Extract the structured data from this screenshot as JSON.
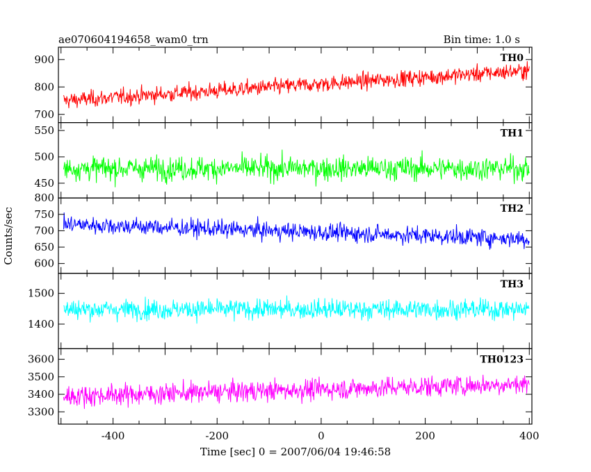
{
  "header": {
    "title": "ae070604194658_wam0_trn",
    "bin_time": "Bin time: 1.0 s"
  },
  "axes": {
    "xlabel": "Time [sec] 0 = 2007/06/04 19:46:58",
    "ylabel": "Counts/sec",
    "x_ticks": [
      "-400",
      "-200",
      "0",
      "200",
      "400"
    ]
  },
  "chart_data": {
    "type": "line",
    "x_range": [
      -505,
      405
    ],
    "x_ticks": [
      -400,
      -200,
      0,
      200,
      400
    ],
    "bin_seconds": 1.0,
    "series": [
      {
        "name": "TH0",
        "color": "#ff0000",
        "ylim": [
          670,
          945
        ],
        "y_ticks": [
          700,
          800,
          900
        ],
        "y_tick_labels": [
          "700",
          "800",
          "900"
        ],
        "trend_start": 750,
        "trend_end": 860,
        "noise": 50
      },
      {
        "name": "TH1",
        "color": "#00ff00",
        "ylim": [
          422,
          565
        ],
        "y_ticks": [
          450,
          500,
          550
        ],
        "y_tick_labels": [
          "450",
          "500",
          "550"
        ],
        "trend_start": 478,
        "trend_end": 478,
        "noise": 38
      },
      {
        "name": "TH2",
        "color": "#0000ff",
        "ylim": [
          570,
          800
        ],
        "y_ticks": [
          600,
          650,
          700,
          750,
          800
        ],
        "y_tick_labels": [
          "600",
          "650",
          "700",
          "750",
          "800"
        ],
        "trend_start": 720,
        "trend_end": 675,
        "noise": 45
      },
      {
        "name": "TH3",
        "color": "#00ffff",
        "ylim": [
          1320,
          1565
        ],
        "y_ticks": [
          1400,
          1500
        ],
        "y_tick_labels": [
          "1400",
          "1500"
        ],
        "trend_start": 1448,
        "trend_end": 1448,
        "noise": 55
      },
      {
        "name": "TH0123",
        "color": "#ff00ff",
        "ylim": [
          3230,
          3660
        ],
        "y_ticks": [
          3300,
          3400,
          3500,
          3600
        ],
        "y_tick_labels": [
          "3300",
          "3400",
          "3500",
          "3600"
        ],
        "trend_start": 3390,
        "trend_end": 3460,
        "noise": 100
      }
    ]
  }
}
